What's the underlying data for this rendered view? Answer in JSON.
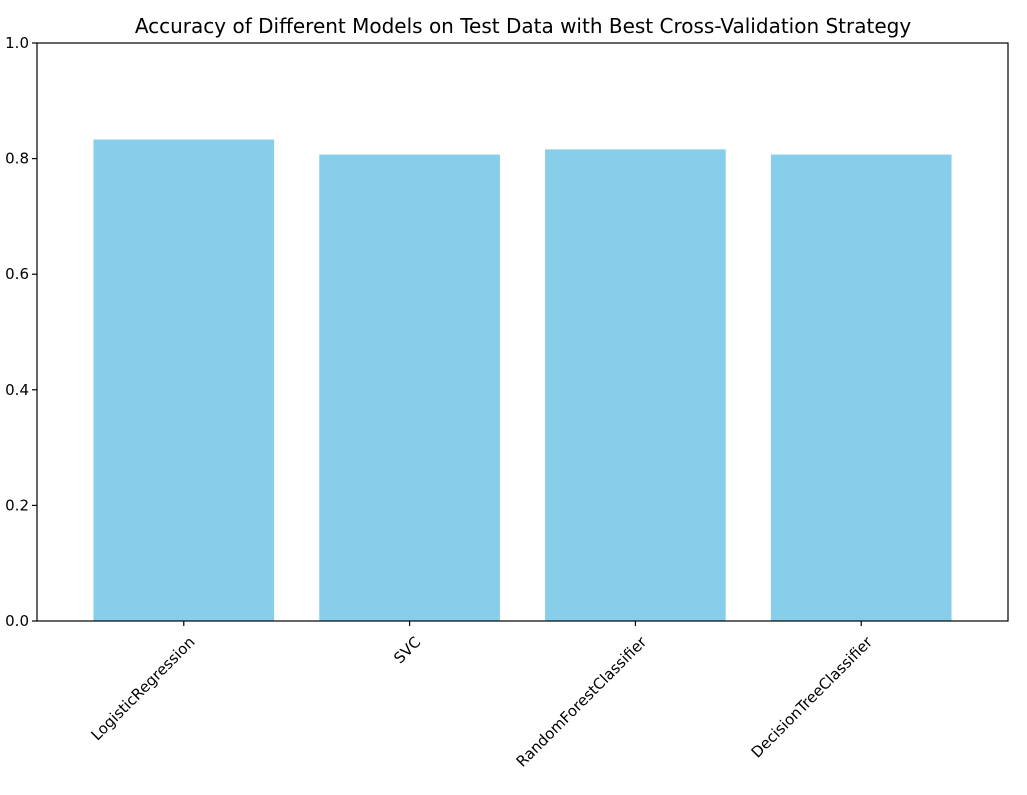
{
  "chart_data": {
    "type": "bar",
    "title": "Accuracy of Different Models on Test Data with Best Cross-Validation Strategy",
    "xlabel": "",
    "ylabel": "",
    "categories": [
      "LogisticRegression",
      "SVC",
      "RandomForestClassifier",
      "DecisionTreeClassifier"
    ],
    "values": [
      0.833,
      0.807,
      0.816,
      0.807
    ],
    "ylim": [
      0,
      1.0
    ],
    "yticks": [
      "0.0",
      "0.2",
      "0.4",
      "0.6",
      "0.8",
      "1.0"
    ],
    "grid": false,
    "legend": "none",
    "bar_color": "#87CEEB",
    "xtick_rotation_deg": 45
  }
}
